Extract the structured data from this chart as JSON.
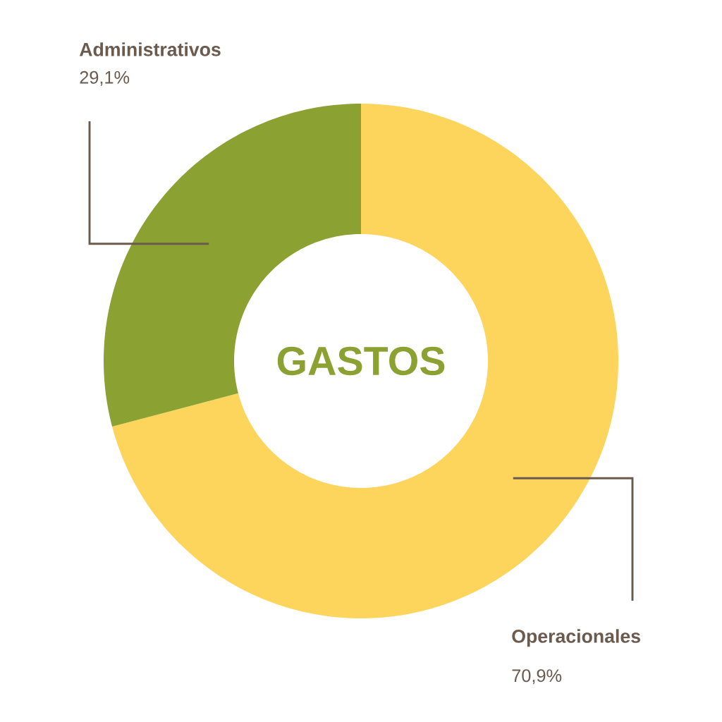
{
  "chart_data": {
    "type": "donut",
    "title": "GASTOS",
    "categories": [
      "Operacionales",
      "Administrativos"
    ],
    "values": [
      70.9,
      29.1
    ],
    "value_labels": [
      "70,9%",
      "29,1%"
    ],
    "colors": [
      "#fdd55c",
      "#8ba232"
    ]
  }
}
